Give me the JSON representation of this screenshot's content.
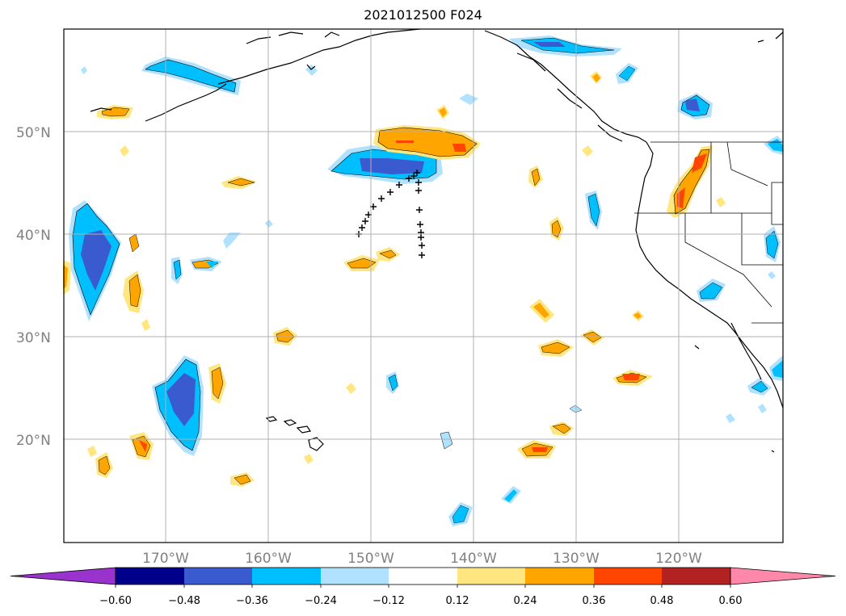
{
  "title": "2021012500 F024",
  "map": {
    "lat_labels": [
      "50°N",
      "40°N",
      "30°N",
      "20°N"
    ],
    "lat_values": [
      50,
      40,
      30,
      20
    ],
    "lon_labels": [
      "170°W",
      "160°W",
      "150°W",
      "140°W",
      "130°W",
      "120°W"
    ],
    "lon_values": [
      -170,
      -160,
      -150,
      -140,
      -130,
      -120
    ],
    "extent": {
      "lon_min": -180,
      "lon_max": -110,
      "lat_min": 10,
      "lat_max": 60
    },
    "gridline_color": "#b0b0b0",
    "coastline_color": "#000000"
  },
  "colorbar": {
    "labels": [
      "−0.60",
      "−0.48",
      "−0.36",
      "−0.24",
      "−0.12",
      "0.12",
      "0.24",
      "0.36",
      "0.48",
      "0.60"
    ],
    "colors": [
      "#9a32cd",
      "#00008b",
      "#3a5bd0",
      "#00bfff",
      "#b0e2ff",
      "#ffffff",
      "#ffe680",
      "#ffa500",
      "#ff4500",
      "#b22222",
      "#ff88aa"
    ],
    "extend": "both"
  },
  "legend_colors": {
    "deep_blue": "#3a5bd0",
    "blue": "#00bfff",
    "light_blue": "#b0e2ff",
    "yellow": "#ffe680",
    "orange": "#ffa500",
    "red": "#ff4500"
  }
}
